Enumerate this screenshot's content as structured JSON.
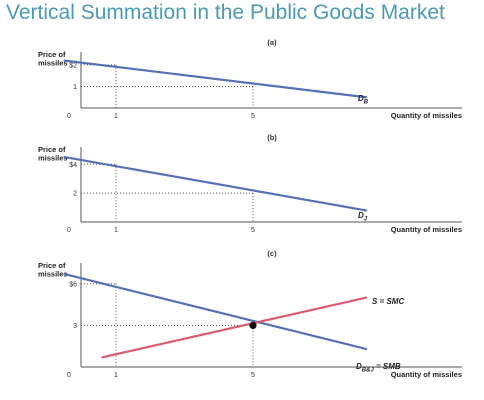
{
  "title": "Vertical Summation in the Public Goods Market",
  "chart_data": [
    {
      "type": "line",
      "panel_label": "(a)",
      "ylabel": "Price of\nmissiles",
      "xlabel": "Quantity of missiles",
      "x_ticks": [
        "0",
        "1",
        "5"
      ],
      "y_ticks": [
        "$2",
        "1"
      ],
      "ylim": [
        0,
        2.6
      ],
      "series": [
        {
          "name": "D_B",
          "label_main": "D",
          "label_sub": "B",
          "color": "#5670b8",
          "x": [
            -0.5,
            8.3
          ],
          "y": [
            2.2,
            0.5
          ]
        }
      ],
      "guides": [
        {
          "x": 1,
          "y": 2
        },
        {
          "x": 5,
          "y": 1
        }
      ]
    },
    {
      "type": "line",
      "panel_label": "(b)",
      "ylabel": "Price of\nmissiles",
      "xlabel": "Quantity of missiles",
      "x_ticks": [
        "0",
        "1",
        "5"
      ],
      "y_ticks": [
        "$4",
        "2"
      ],
      "ylim": [
        0,
        5.2
      ],
      "series": [
        {
          "name": "D_J",
          "label_main": "D",
          "label_sub": "J",
          "color": "#5670b8",
          "x": [
            -0.5,
            8.3
          ],
          "y": [
            4.5,
            0.8
          ]
        }
      ],
      "guides": [
        {
          "x": 1,
          "y": 4
        },
        {
          "x": 5,
          "y": 2
        }
      ]
    },
    {
      "type": "line",
      "panel_label": "(c)",
      "ylabel": "Price of\nmissiles",
      "xlabel": "Quantity of missiles",
      "x_ticks": [
        "0",
        "1",
        "5"
      ],
      "y_ticks": [
        "$6",
        "3"
      ],
      "ylim": [
        0,
        7.5
      ],
      "series": [
        {
          "name": "D_B&J = SMB",
          "label_main": "D",
          "label_sub": "B&J",
          "label_rest": " = SMB",
          "color": "#5670b8",
          "x": [
            -0.5,
            8.3
          ],
          "y": [
            6.7,
            1.3
          ]
        },
        {
          "name": "S = SMC",
          "label_main": "S = SMC",
          "label_sub": "",
          "color": "#dc5a6e",
          "x": [
            0.6,
            8.3
          ],
          "y": [
            0.7,
            5.0
          ]
        }
      ],
      "guides": [
        {
          "x": 1,
          "y": 6
        },
        {
          "x": 5,
          "y": 3
        }
      ],
      "equilibrium": {
        "x": 5,
        "y": 3
      }
    }
  ]
}
